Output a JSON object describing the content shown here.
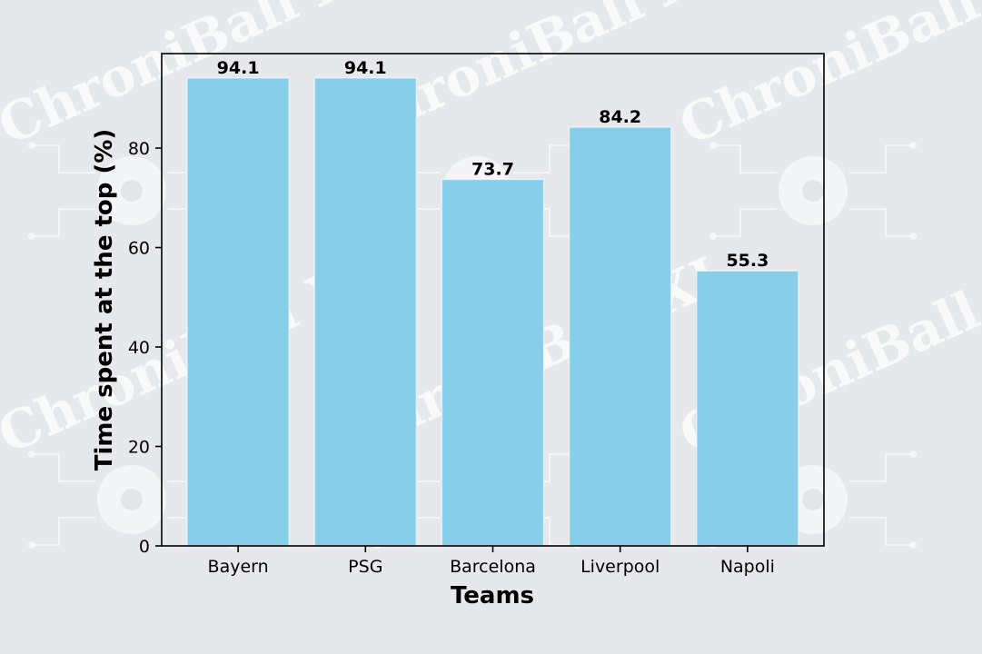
{
  "watermark": {
    "text": "ChroniBall XI",
    "icon": "soccer-ball-circuit-icon"
  },
  "chart_data": {
    "type": "bar",
    "categories": [
      "Bayern",
      "PSG",
      "Barcelona",
      "Liverpool",
      "Napoli"
    ],
    "values": [
      94.1,
      94.1,
      73.7,
      84.2,
      55.3
    ],
    "value_labels": [
      "94.1",
      "94.1",
      "73.7",
      "84.2",
      "55.3"
    ],
    "title": "",
    "xlabel": "Teams",
    "ylabel": "Time spent at the top (%)",
    "ylim": [
      0,
      99
    ],
    "yticks": [
      0,
      20,
      40,
      60,
      80
    ],
    "grid": false,
    "bar_color": "#87ceeb",
    "background_color": "#e7e8eb"
  }
}
